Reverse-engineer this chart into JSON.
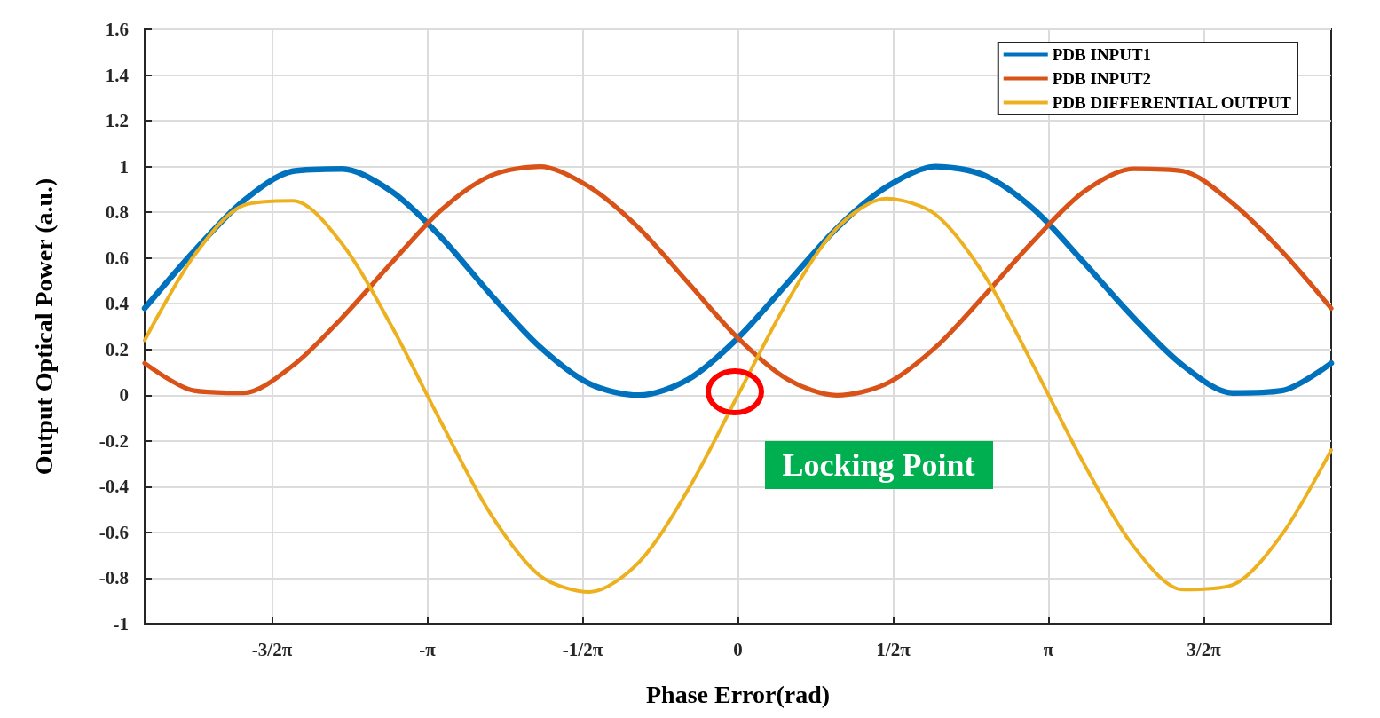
{
  "chart_data": {
    "type": "line",
    "xlabel": "Phase Error(rad)",
    "ylabel": "Output Optical Power (a.u.)",
    "x": [
      -6,
      -5.5,
      -5,
      -4.5,
      -4,
      -3.5,
      -3,
      -2.5,
      -2,
      -1.5,
      -1,
      -0.5,
      0,
      0.5,
      1,
      1.5,
      2,
      2.5,
      3,
      3.5,
      4,
      4.5,
      5,
      5.5,
      6
    ],
    "series": [
      {
        "name": "PDB INPUT1",
        "color": "#0072bd",
        "values": [
          0.38,
          0.63,
          0.85,
          0.98,
          0.99,
          0.89,
          0.69,
          0.44,
          0.21,
          0.05,
          0.0,
          0.07,
          0.25,
          0.49,
          0.73,
          0.91,
          1.0,
          0.96,
          0.81,
          0.58,
          0.34,
          0.13,
          0.01,
          0.02,
          0.14
        ]
      },
      {
        "name": "PDB INPUT2",
        "color": "#d95319",
        "values": [
          0.14,
          0.02,
          0.01,
          0.13,
          0.34,
          0.58,
          0.81,
          0.96,
          1.0,
          0.91,
          0.73,
          0.49,
          0.25,
          0.07,
          0.0,
          0.05,
          0.21,
          0.44,
          0.68,
          0.89,
          0.99,
          0.98,
          0.84,
          0.63,
          0.38
        ]
      },
      {
        "name": "PDB DIFFERENTIAL OUTPUT",
        "color": "#edb120",
        "values": [
          0.24,
          0.61,
          0.83,
          0.85,
          0.66,
          0.3,
          -0.12,
          -0.52,
          -0.79,
          -0.86,
          -0.73,
          -0.41,
          0.0,
          0.41,
          0.73,
          0.86,
          0.79,
          0.52,
          0.12,
          -0.3,
          -0.66,
          -0.85,
          -0.83,
          -0.61,
          -0.24
        ]
      }
    ],
    "xlim": [
      -6,
      6
    ],
    "xticks": [
      {
        "value": -4.712,
        "label": "-3/2π"
      },
      {
        "value": -3.1416,
        "label": "-π"
      },
      {
        "value": -1.5708,
        "label": "-1/2π"
      },
      0,
      {
        "value": 1.5708,
        "label": "1/2π"
      },
      {
        "value": 3.1416,
        "label": "π"
      },
      {
        "value": 4.712,
        "label": "3/2π"
      }
    ],
    "ylim": [
      -1,
      1.6
    ],
    "yticks": [
      -1,
      -0.8,
      -0.6,
      -0.4,
      -0.2,
      0,
      0.2,
      0.4,
      0.6,
      0.8,
      1,
      1.2,
      1.4,
      1.6
    ],
    "annotations": [
      {
        "text": "Locking Point",
        "x": 0,
        "y": 0
      }
    ],
    "grid": true,
    "legend": "top right",
    "marker": "none",
    "line_style": "solid"
  }
}
